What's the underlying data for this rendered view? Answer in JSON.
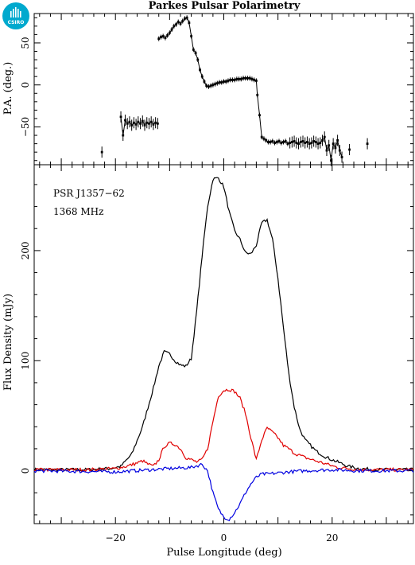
{
  "logo": {
    "text": "CSIRO",
    "color": "#00a9ce"
  },
  "chart_data": [
    {
      "type": "scatter",
      "title": "Parkes Pulsar Polarimetry",
      "ylabel": "P.A. (deg.)",
      "xlim": [
        -35,
        35
      ],
      "ylim": [
        -95,
        85
      ],
      "yticks": [
        -50,
        0,
        50
      ],
      "series": [
        {
          "color": "#000000",
          "x": [
            -22.5,
            -19.0,
            -18.6,
            -18.2,
            -17.8,
            -17.4,
            -17.0,
            -16.6,
            -16.2,
            -15.8,
            -15.4,
            -15.0,
            -14.6,
            -14.2,
            -13.8,
            -13.4,
            -13.0,
            -12.6,
            -12.2,
            -12.0,
            -11.6,
            -11.2,
            -10.8,
            -10.4,
            -10.0,
            -9.6,
            -9.2,
            -8.8,
            -8.4,
            -8.0,
            -7.6,
            -7.2,
            -6.8,
            -6.4,
            -6.0,
            -5.6,
            -5.2,
            -4.8,
            -4.4,
            -4.0,
            -3.6,
            -3.2,
            -2.8,
            -2.4,
            -2.0,
            -1.6,
            -1.2,
            -0.8,
            -0.4,
            0.0,
            0.4,
            0.8,
            1.2,
            1.6,
            2.0,
            2.4,
            2.8,
            3.2,
            3.6,
            4.0,
            4.4,
            4.8,
            5.2,
            5.6,
            6.0,
            6.2,
            6.6,
            7.0,
            7.4,
            7.8,
            8.2,
            8.6,
            9.0,
            9.4,
            9.8,
            10.2,
            10.6,
            11.0,
            11.4,
            11.8,
            12.2,
            12.6,
            13.0,
            13.4,
            13.8,
            14.2,
            14.6,
            15.0,
            15.4,
            15.8,
            16.2,
            16.6,
            17.0,
            17.4,
            17.8,
            18.2,
            18.6,
            19.0,
            19.4,
            19.8,
            20.2,
            20.6,
            21.0,
            21.4,
            21.8,
            23.2,
            26.5
          ],
          "y": [
            -80,
            -38,
            -60,
            -42,
            -46,
            -44,
            -48,
            -45,
            -47,
            -44,
            -46,
            -43,
            -48,
            -45,
            -46,
            -44,
            -47,
            -45,
            -46,
            55,
            57,
            58,
            56,
            59,
            62,
            66,
            70,
            72,
            75,
            73,
            76,
            79,
            80,
            74,
            58,
            42,
            38,
            30,
            18,
            10,
            4,
            -1,
            -2,
            -1,
            0,
            1,
            2,
            3,
            3,
            4,
            4,
            5,
            6,
            6,
            6,
            7,
            7,
            7,
            8,
            8,
            8,
            8,
            7,
            6,
            5,
            -12,
            -36,
            -62,
            -64,
            -66,
            -68,
            -68,
            -67,
            -69,
            -68,
            -67,
            -69,
            -68,
            -67,
            -70,
            -69,
            -68,
            -67,
            -69,
            -70,
            -68,
            -67,
            -69,
            -68,
            -70,
            -69,
            -67,
            -68,
            -70,
            -69,
            -66,
            -62,
            -78,
            -72,
            -90,
            -70,
            -75,
            -66,
            -78,
            -86,
            -77,
            -70
          ]
        }
      ]
    },
    {
      "type": "line",
      "xlabel": "Pulse Longitude (deg)",
      "ylabel": "Flux Density (mJy)",
      "xlim": [
        -35,
        35
      ],
      "ylim": [
        -48,
        278
      ],
      "xticks": [
        -20,
        0,
        20
      ],
      "yticks": [
        0,
        100,
        200
      ],
      "annotations": [
        "PSR J1357−62",
        "1368 MHz"
      ],
      "series": [
        {
          "color": "#000000",
          "x": [
            -35,
            -30,
            -25,
            -21,
            -19,
            -17,
            -15,
            -13,
            -12,
            -11,
            -10,
            -9,
            -8,
            -7,
            -6,
            -5,
            -4,
            -3,
            -2,
            -1,
            0,
            1,
            2,
            3,
            4,
            5,
            6,
            7,
            8,
            9,
            10,
            11,
            12,
            13,
            14,
            15,
            17,
            19,
            21,
            23,
            25,
            28,
            35
          ],
          "y": [
            1,
            1,
            1,
            2,
            4,
            15,
            40,
            75,
            95,
            108,
            106,
            100,
            96,
            95,
            102,
            145,
            195,
            240,
            265,
            266,
            258,
            235,
            218,
            210,
            198,
            197,
            205,
            225,
            228,
            210,
            175,
            130,
            88,
            58,
            38,
            28,
            18,
            12,
            8,
            4,
            2,
            1,
            1
          ]
        },
        {
          "color": "#e00000",
          "x": [
            -35,
            -25,
            -20,
            -18,
            -16,
            -15,
            -14,
            -13,
            -12,
            -11,
            -10,
            -9,
            -8,
            -7,
            -6,
            -5,
            -4,
            -3,
            -2,
            -1,
            0,
            1,
            2,
            3,
            4,
            5,
            6,
            7,
            8,
            9,
            10,
            11,
            12,
            13,
            14,
            15,
            17,
            19,
            21,
            25,
            35
          ],
          "y": [
            1,
            1,
            2,
            4,
            7,
            9,
            6,
            4,
            10,
            22,
            25,
            24,
            20,
            12,
            10,
            8,
            10,
            20,
            45,
            68,
            73,
            74,
            72,
            66,
            52,
            30,
            10,
            28,
            39,
            35,
            30,
            23,
            20,
            16,
            14,
            12,
            9,
            6,
            3,
            1,
            1
          ]
        },
        {
          "color": "#0000e0",
          "x": [
            -35,
            -20,
            -10,
            -6,
            -4,
            -3,
            -2,
            -1,
            0,
            1,
            2,
            3,
            4,
            5,
            6,
            7,
            8,
            10,
            12,
            15,
            20,
            25,
            35
          ],
          "y": [
            0,
            -1,
            2,
            3,
            6,
            0,
            -20,
            -35,
            -42,
            -44,
            -38,
            -30,
            -20,
            -12,
            -6,
            -3,
            -3,
            -2,
            -1,
            0,
            1,
            0,
            0
          ]
        }
      ]
    }
  ]
}
